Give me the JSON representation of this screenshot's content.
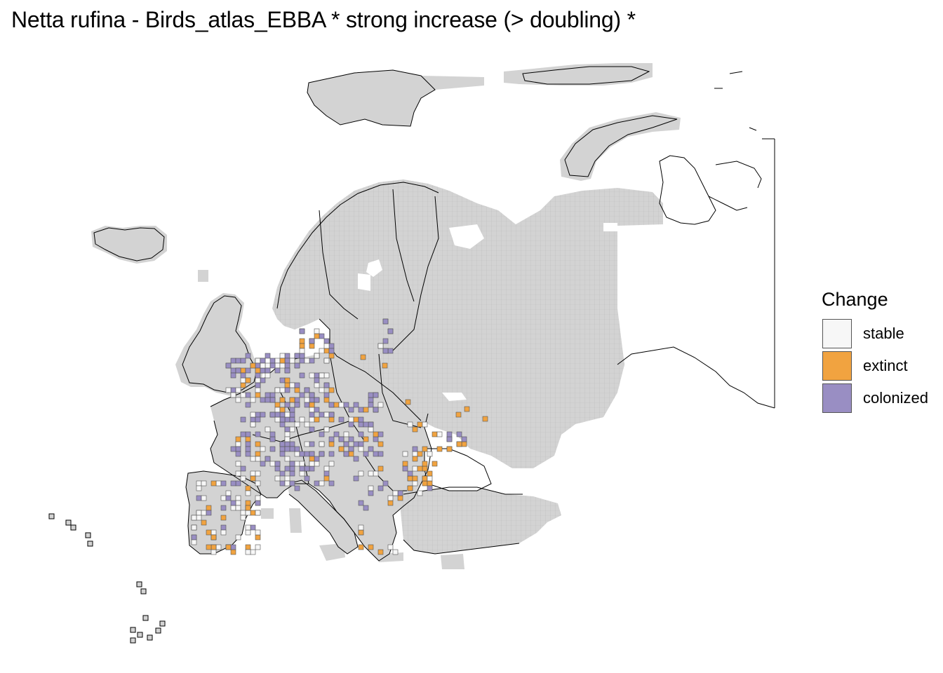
{
  "title": "Netta rufina - Birds_atlas_EBBA * strong increase (> doubling) *",
  "legend": {
    "title": "Change",
    "items": [
      {
        "key": "stable",
        "label": "stable",
        "color": "#f7f7f7"
      },
      {
        "key": "extinct",
        "label": "extinct",
        "color": "#f1a340"
      },
      {
        "key": "colonized",
        "label": "colonized",
        "color": "#998ec3"
      }
    ]
  },
  "colors": {
    "land": "#d3d3d3",
    "grid": "#b8b8b8",
    "outline": "#000000",
    "stable": "#f7f7f7",
    "extinct": "#f1a340",
    "colonized": "#998ec3"
  }
}
